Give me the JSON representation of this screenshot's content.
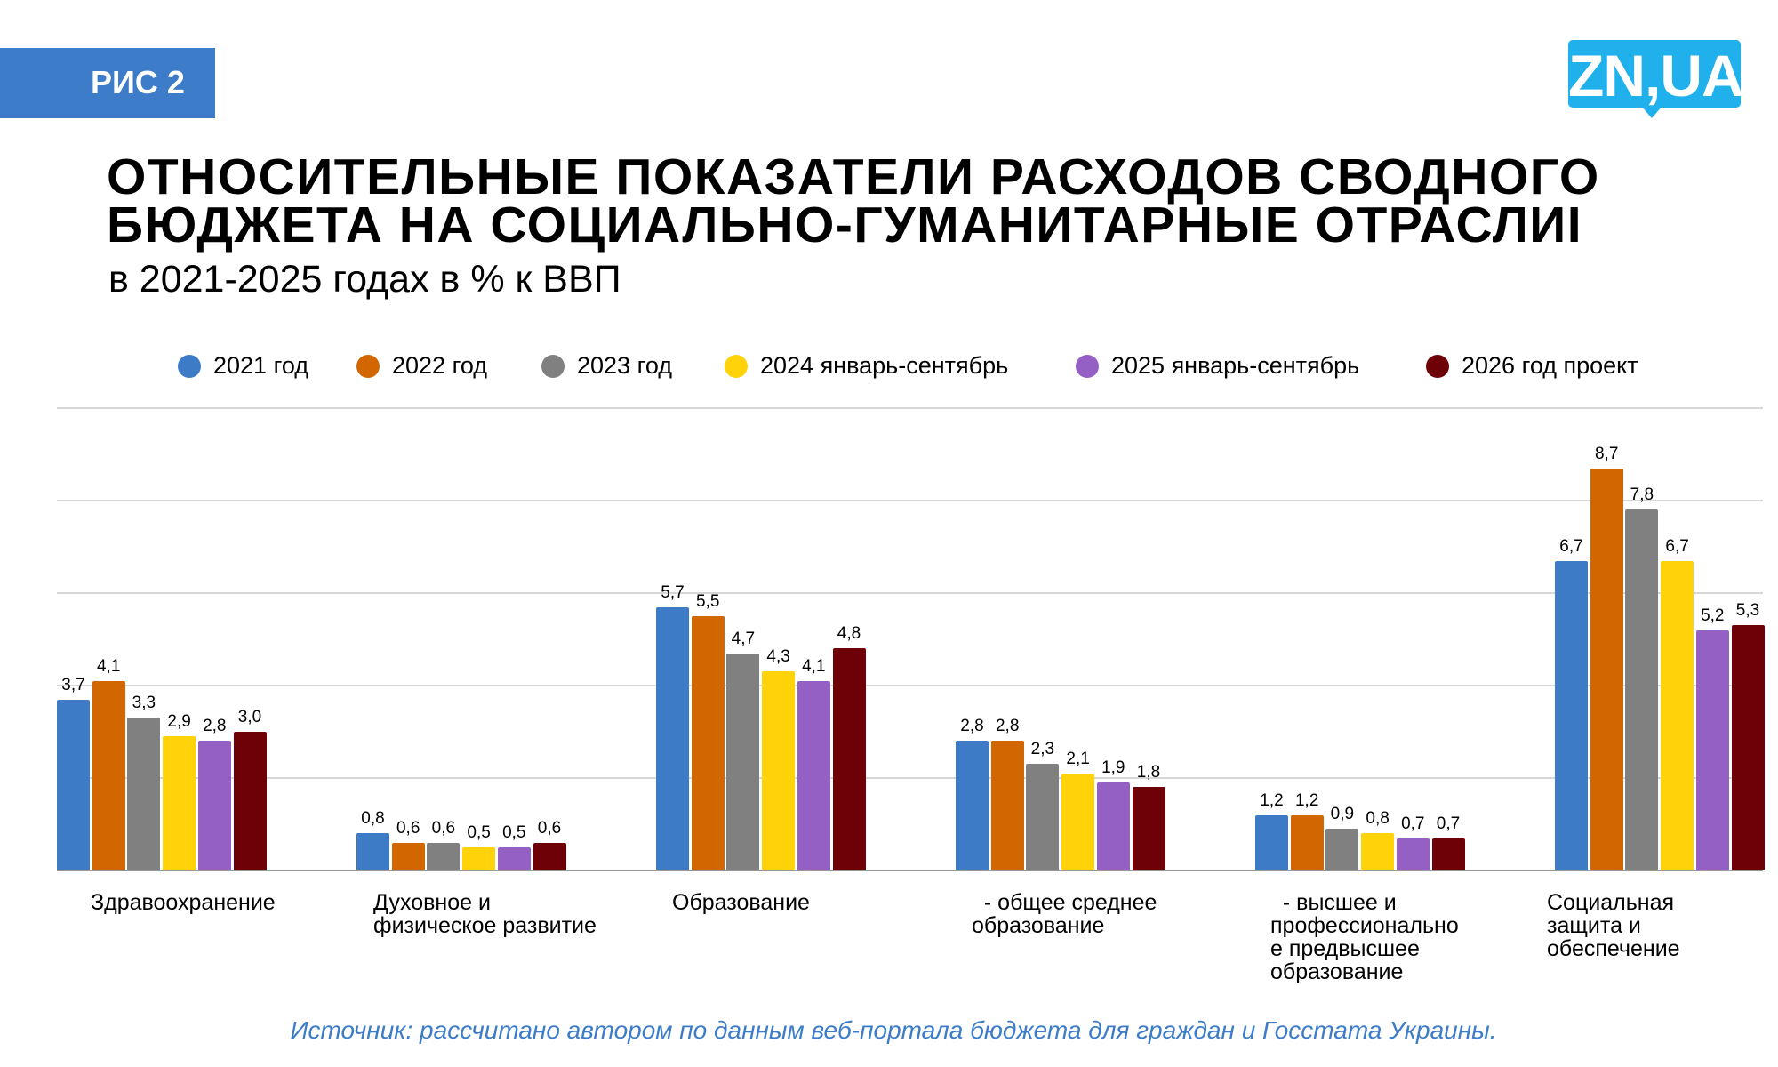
{
  "badge": "РИС 2",
  "logo": "ZN,UA",
  "title_line1": "ОТНОСИТЕЛЬНЫЕ ПОКАЗАТЕЛИ РАСХОДОВ СВОДНОГО",
  "title_line2": "БЮДЖЕТА НА СОЦИАЛЬНО-ГУМАНИТАРНЫЕ ОТРАСЛИІ",
  "subtitle": "в 2021-2025 годах в % к ВВП",
  "source": "Источник: рассчитано автором по данным веб-портала бюджета для граждан и Госстата Украины.",
  "colors": {
    "badge": "#3d7cc9",
    "logo": "#20b0ec",
    "source": "#3d7cc9"
  },
  "chart_data": {
    "type": "bar",
    "title": "ОТНОСИТЕЛЬНЫЕ ПОКАЗАТЕЛИ РАСХОДОВ СВОДНОГО БЮДЖЕТА НА СОЦИАЛЬНО-ГУМАНИТАРНЫЕ ОТРАСЛИІ",
    "subtitle": "в 2021-2025 годах в % к ВВП",
    "xlabel": "",
    "ylabel": "",
    "ylim": [
      0,
      10
    ],
    "grid_values": [
      2,
      4,
      6,
      8,
      10
    ],
    "grid": true,
    "legend_position": "top",
    "categories": [
      "Здравоохранение",
      "Духовное и\nфизическое развитие",
      "Образование",
      "  - общее среднее\nобразование",
      "  - высшее и\nпрофессионально\nе предвысшее\nобразование",
      "Социальная\nзащита и\nобеспечение"
    ],
    "series": [
      {
        "name": "2021 год",
        "color": "#3d7bc6",
        "values": [
          3.7,
          0.8,
          5.7,
          2.8,
          1.2,
          6.7
        ],
        "labels": [
          "3,7",
          "0,8",
          "5,7",
          "2,8",
          "1,2",
          "6,7"
        ]
      },
      {
        "name": "2022 год",
        "color": "#d26600",
        "values": [
          4.1,
          0.6,
          5.5,
          2.8,
          1.2,
          8.7
        ],
        "labels": [
          "4,1",
          "0,6",
          "5,5",
          "2,8",
          "1,2",
          "8,7"
        ]
      },
      {
        "name": "2023 год",
        "color": "#808080",
        "values": [
          3.3,
          0.6,
          4.7,
          2.3,
          0.9,
          7.8
        ],
        "labels": [
          "3,3",
          "0,6",
          "4,7",
          "2,3",
          "0,9",
          "7,8"
        ]
      },
      {
        "name": "2024 январь-сентябрь",
        "color": "#ffd20a",
        "values": [
          2.9,
          0.5,
          4.3,
          2.1,
          0.8,
          6.7
        ],
        "labels": [
          "2,9",
          "0,5",
          "4,3",
          "2,1",
          "0,8",
          "6,7"
        ]
      },
      {
        "name": "2025 январь-сентябрь",
        "color": "#9460c4",
        "values": [
          2.8,
          0.5,
          4.1,
          1.9,
          0.7,
          5.2
        ],
        "labels": [
          "2,8",
          "0,5",
          "4,1",
          "1,9",
          "0,7",
          "5,2"
        ]
      },
      {
        "name": "2026 год проект",
        "color": "#6e0008",
        "values": [
          3.0,
          0.6,
          4.8,
          1.8,
          0.7,
          5.3
        ],
        "labels": [
          "3,0",
          "0,6",
          "4,8",
          "1,8",
          "0,7",
          "5,3"
        ]
      }
    ]
  }
}
